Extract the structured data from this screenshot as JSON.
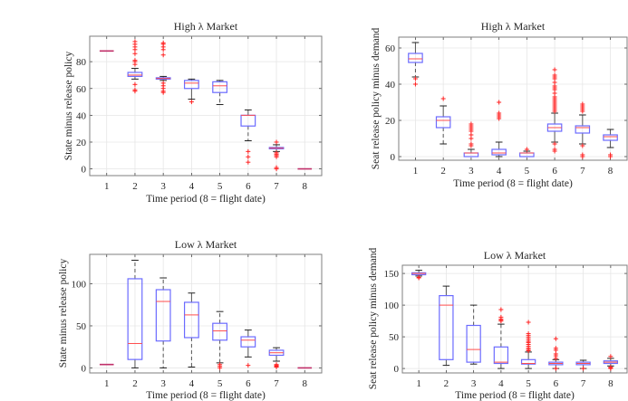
{
  "figure": {
    "colors": {
      "box": "#6b6bff",
      "median": "#ff4d4d",
      "whisker": "#555555",
      "outlier": "#ff2020",
      "grid": "#e6e6e6",
      "axes": "#7f7f7f"
    }
  },
  "chart_data": [
    {
      "id": "high-state",
      "type": "box",
      "title": "High λ Market",
      "xlabel": "Time period (8 = flight date)",
      "ylabel": "State minus release policy",
      "categories": [
        "1",
        "2",
        "3",
        "4",
        "5",
        "6",
        "7",
        "8"
      ],
      "ylim": [
        -5,
        99
      ],
      "yticks": [
        0,
        20,
        40,
        60,
        80
      ],
      "grid": true,
      "boxes": [
        {
          "x": "1",
          "q1": 88,
          "median": 88,
          "q3": 88,
          "whislo": 88,
          "whishi": 88,
          "fliers": []
        },
        {
          "x": "2",
          "q1": 69,
          "median": 70,
          "q3": 72,
          "whislo": 67,
          "whishi": 75,
          "fliers": [
            58,
            59,
            63,
            78,
            80,
            81,
            86,
            89,
            91,
            93,
            95
          ]
        },
        {
          "x": "3",
          "q1": 67,
          "median": 67.5,
          "q3": 68,
          "whislo": 66,
          "whishi": 69,
          "fliers": [
            57,
            58,
            60,
            62,
            64,
            85,
            89,
            91,
            93,
            94
          ]
        },
        {
          "x": "4",
          "q1": 60,
          "median": 64,
          "q3": 66,
          "whislo": 52,
          "whishi": 67,
          "fliers": [
            50
          ]
        },
        {
          "x": "5",
          "q1": 57,
          "median": 62,
          "q3": 65,
          "whislo": 48,
          "whishi": 66,
          "fliers": []
        },
        {
          "x": "6",
          "q1": 32,
          "median": 40,
          "q3": 40,
          "whislo": 21,
          "whishi": 44,
          "fliers": [
            5,
            9,
            13
          ]
        },
        {
          "x": "7",
          "q1": 15,
          "median": 15.5,
          "q3": 16,
          "whislo": 13,
          "whishi": 18,
          "fliers": [
            0,
            1,
            9,
            10,
            11,
            12,
            20
          ]
        },
        {
          "x": "8",
          "q1": 0,
          "median": 0,
          "q3": 0,
          "whislo": 0,
          "whishi": 0,
          "fliers": []
        }
      ]
    },
    {
      "id": "high-seat",
      "type": "box",
      "title": "High λ Market",
      "xlabel": "Time period (8 = flight date)",
      "ylabel": "Seat release policy minus demand",
      "categories": [
        "1",
        "2",
        "3",
        "4",
        "5",
        "6",
        "7",
        "8"
      ],
      "ylim": [
        -2,
        66
      ],
      "yticks": [
        0,
        20,
        40,
        60
      ],
      "grid": true,
      "boxes": [
        {
          "x": "1",
          "q1": 52,
          "median": 54,
          "q3": 57,
          "whislo": 44,
          "whishi": 63,
          "fliers": [
            40,
            43
          ]
        },
        {
          "x": "2",
          "q1": 16,
          "median": 20,
          "q3": 22,
          "whislo": 7,
          "whishi": 28,
          "fliers": [
            32
          ]
        },
        {
          "x": "3",
          "q1": 0,
          "median": 2,
          "q3": 2,
          "whislo": 0,
          "whishi": 4,
          "fliers": [
            6,
            7,
            10,
            12,
            14,
            15,
            16,
            17,
            18
          ]
        },
        {
          "x": "4",
          "q1": 1,
          "median": 2,
          "q3": 4,
          "whislo": 0,
          "whishi": 8,
          "fliers": [
            21,
            22,
            23,
            24,
            30
          ]
        },
        {
          "x": "5",
          "q1": 0,
          "median": 2,
          "q3": 2,
          "whislo": 0,
          "whishi": 3,
          "fliers": [
            4
          ]
        },
        {
          "x": "6",
          "q1": 14,
          "median": 16,
          "q3": 18,
          "whislo": 8,
          "whishi": 24,
          "fliers": [
            3,
            4,
            7,
            25,
            26,
            27,
            28,
            29,
            30,
            31,
            32,
            33,
            35,
            37,
            38,
            39,
            41,
            43,
            44,
            45,
            48
          ]
        },
        {
          "x": "7",
          "q1": 13,
          "median": 16,
          "q3": 17,
          "whislo": 7,
          "whishi": 23,
          "fliers": [
            0,
            1,
            6,
            25,
            26,
            27,
            28,
            29
          ]
        },
        {
          "x": "8",
          "q1": 9,
          "median": 11,
          "q3": 12,
          "whislo": 5,
          "whishi": 15,
          "fliers": [
            0,
            1
          ]
        }
      ]
    },
    {
      "id": "low-state",
      "type": "box",
      "title": "Low λ Market",
      "xlabel": "Time period (8 = flight date)",
      "ylabel": "State minus release policy",
      "categories": [
        "1",
        "2",
        "3",
        "4",
        "5",
        "6",
        "7",
        "8"
      ],
      "ylim": [
        -6,
        135
      ],
      "yticks": [
        0,
        50,
        100
      ],
      "grid": true,
      "boxes": [
        {
          "x": "1",
          "q1": 4,
          "median": 4,
          "q3": 4,
          "whislo": 4,
          "whishi": 4,
          "fliers": []
        },
        {
          "x": "2",
          "q1": 10,
          "median": 29,
          "q3": 106,
          "whislo": 0,
          "whishi": 128,
          "fliers": []
        },
        {
          "x": "3",
          "q1": 32,
          "median": 79,
          "q3": 93,
          "whislo": 0,
          "whishi": 107,
          "fliers": []
        },
        {
          "x": "4",
          "q1": 36,
          "median": 63,
          "q3": 78,
          "whislo": 1,
          "whishi": 89,
          "fliers": []
        },
        {
          "x": "5",
          "q1": 33,
          "median": 44,
          "q3": 53,
          "whislo": 6,
          "whishi": 67,
          "fliers": [
            0,
            2,
            4
          ]
        },
        {
          "x": "6",
          "q1": 25,
          "median": 33,
          "q3": 37,
          "whislo": 13,
          "whishi": 45,
          "fliers": [
            3
          ]
        },
        {
          "x": "7",
          "q1": 15,
          "median": 18,
          "q3": 21,
          "whislo": 8,
          "whishi": 24,
          "fliers": [
            1,
            2,
            3,
            4
          ]
        },
        {
          "x": "8",
          "q1": 0,
          "median": 0,
          "q3": 0,
          "whislo": 0,
          "whishi": 0,
          "fliers": []
        }
      ]
    },
    {
      "id": "low-seat",
      "type": "box",
      "title": "Low λ Market",
      "xlabel": "Time period (8 = flight date)",
      "ylabel": "Seat release policy minus demand",
      "categories": [
        "1",
        "2",
        "3",
        "4",
        "5",
        "6",
        "7",
        "8"
      ],
      "ylim": [
        -7,
        163
      ],
      "yticks": [
        0,
        50,
        100,
        150
      ],
      "grid": true,
      "boxes": [
        {
          "x": "1",
          "q1": 148,
          "median": 150,
          "q3": 151,
          "whislo": 146,
          "whishi": 155,
          "fliers": [
            143,
            144
          ]
        },
        {
          "x": "2",
          "q1": 14,
          "median": 100,
          "q3": 115,
          "whislo": 5,
          "whishi": 130,
          "fliers": []
        },
        {
          "x": "3",
          "q1": 10,
          "median": 30,
          "q3": 68,
          "whislo": 7,
          "whishi": 100,
          "fliers": []
        },
        {
          "x": "4",
          "q1": 8,
          "median": 10,
          "q3": 34,
          "whislo": 0,
          "whishi": 70,
          "fliers": [
            75,
            76,
            78,
            81,
            93
          ]
        },
        {
          "x": "5",
          "q1": 7,
          "median": 8,
          "q3": 14,
          "whislo": 0,
          "whishi": 26,
          "fliers": [
            28,
            30,
            32,
            35,
            38,
            41,
            43,
            46,
            49,
            52,
            55,
            73
          ]
        },
        {
          "x": "6",
          "q1": 6,
          "median": 8,
          "q3": 10,
          "whislo": 0,
          "whishi": 14,
          "fliers": [
            0,
            16,
            20,
            23,
            29,
            32,
            47
          ]
        },
        {
          "x": "7",
          "q1": 6,
          "median": 8,
          "q3": 10,
          "whislo": 0,
          "whishi": 13,
          "fliers": [
            0
          ]
        },
        {
          "x": "8",
          "q1": 8,
          "median": 10,
          "q3": 12,
          "whislo": 4,
          "whishi": 16,
          "fliers": [
            0,
            1,
            2,
            19
          ]
        }
      ]
    }
  ]
}
